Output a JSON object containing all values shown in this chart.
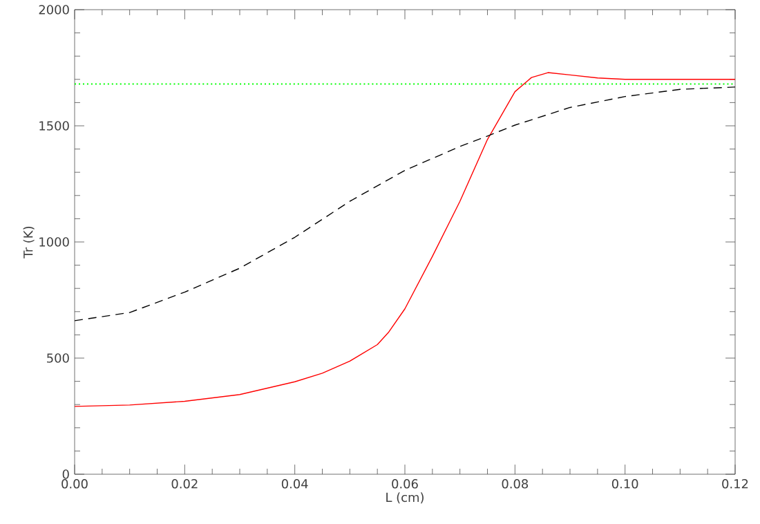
{
  "chart_data": {
    "type": "line",
    "xlabel": "L (cm)",
    "ylabel": "Tr (K)",
    "xlim": [
      0,
      0.12
    ],
    "ylim": [
      0,
      2000
    ],
    "xticks": [
      {
        "value": 0,
        "label": "0.00"
      },
      {
        "value": 0.02,
        "label": "0.02"
      },
      {
        "value": 0.04,
        "label": "0.04"
      },
      {
        "value": 0.06,
        "label": "0.06"
      },
      {
        "value": 0.08,
        "label": "0.08"
      },
      {
        "value": 0.1,
        "label": "0.10"
      },
      {
        "value": 0.12,
        "label": "0.12"
      }
    ],
    "yticks": [
      0,
      500,
      1000,
      1500,
      2000
    ],
    "marker": "none",
    "series": [
      {
        "color": "#ff0000",
        "line_style": "solid",
        "x": [
          0,
          0.01,
          0.02,
          0.03,
          0.04,
          0.045,
          0.05,
          0.055,
          0.057,
          0.06,
          0.065,
          0.07,
          0.075,
          0.08,
          0.083,
          0.086,
          0.09,
          0.095,
          0.1,
          0.12
        ],
        "values": [
          292,
          298,
          314,
          343,
          398,
          435,
          487,
          558,
          610,
          712,
          938,
          1175,
          1441,
          1647,
          1708,
          1729,
          1719,
          1706,
          1700,
          1700
        ]
      },
      {
        "color": "#000000",
        "line_style": "dashed",
        "x": [
          0,
          0.01,
          0.02,
          0.03,
          0.04,
          0.05,
          0.06,
          0.07,
          0.075,
          0.08,
          0.09,
          0.1,
          0.11,
          0.12
        ],
        "values": [
          661,
          696,
          784,
          887,
          1020,
          1175,
          1308,
          1411,
          1456,
          1503,
          1579,
          1626,
          1657,
          1667
        ]
      }
    ],
    "ref_lines": [
      {
        "axis": "y",
        "value": 1680,
        "color": "#00ff00",
        "line_style": "dotted"
      }
    ]
  }
}
